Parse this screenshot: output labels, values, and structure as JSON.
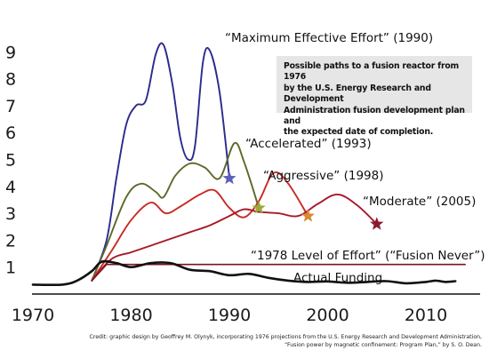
{
  "chart_data": {
    "type": "line",
    "xlim": [
      1970,
      2014
    ],
    "ylim": [
      0,
      9.6
    ],
    "x_ticks": [
      1970,
      1980,
      1990,
      2000,
      2010
    ],
    "y_ticks": [
      1,
      2,
      3,
      4,
      5,
      6,
      7,
      8,
      9
    ],
    "series": [
      {
        "name": "“Maximum Effective Effort” (1990)",
        "color": "#2b2a8e",
        "marker_color": "#5a5fb8",
        "points": [
          [
            1976,
            0.5
          ],
          [
            1977.5,
            2.0
          ],
          [
            1978.5,
            4.3
          ],
          [
            1979.5,
            6.3
          ],
          [
            1980.5,
            7.0
          ],
          [
            1981.5,
            7.2
          ],
          [
            1982.5,
            8.9
          ],
          [
            1983.3,
            9.25
          ],
          [
            1984.2,
            7.8
          ],
          [
            1985.0,
            5.8
          ],
          [
            1985.8,
            5.0
          ],
          [
            1986.5,
            5.5
          ],
          [
            1987.3,
            8.6
          ],
          [
            1988.0,
            9.05
          ],
          [
            1989.0,
            7.5
          ],
          [
            1990.0,
            4.3
          ]
        ],
        "end": [
          1990.0,
          4.3
        ]
      },
      {
        "name": "“Accelerated” (1993)",
        "color": "#5d6a28",
        "marker_color": "#9aaa3c",
        "points": [
          [
            1976,
            0.5
          ],
          [
            1977.5,
            1.8
          ],
          [
            1979.5,
            3.6
          ],
          [
            1981,
            4.1
          ],
          [
            1982.5,
            3.8
          ],
          [
            1983.3,
            3.6
          ],
          [
            1984.5,
            4.4
          ],
          [
            1986,
            4.85
          ],
          [
            1987.5,
            4.7
          ],
          [
            1989,
            4.3
          ],
          [
            1990.5,
            5.6
          ],
          [
            1991.5,
            4.9
          ],
          [
            1993,
            3.2
          ]
        ],
        "end": [
          1993.0,
          3.2
        ]
      },
      {
        "name": "“Aggressive” (1998)",
        "color": "#c92a26",
        "marker_color": "#d98a33",
        "points": [
          [
            1976,
            0.5
          ],
          [
            1978,
            1.6
          ],
          [
            1980,
            2.75
          ],
          [
            1982,
            3.4
          ],
          [
            1983.5,
            3.0
          ],
          [
            1985,
            3.25
          ],
          [
            1987,
            3.7
          ],
          [
            1988.5,
            3.85
          ],
          [
            1990,
            3.2
          ],
          [
            1991.5,
            2.85
          ],
          [
            1993,
            3.45
          ],
          [
            1994.5,
            4.5
          ],
          [
            1996,
            4.1
          ],
          [
            1998,
            2.9
          ]
        ],
        "end": [
          1998.0,
          2.9
        ]
      },
      {
        "name": "“Moderate” (2005)",
        "color": "#a8192a",
        "marker_color": "#8c1a2e",
        "points": [
          [
            1976,
            0.5
          ],
          [
            1978,
            1.3
          ],
          [
            1980,
            1.55
          ],
          [
            1982,
            1.8
          ],
          [
            1984,
            2.05
          ],
          [
            1986,
            2.3
          ],
          [
            1988,
            2.55
          ],
          [
            1990,
            2.9
          ],
          [
            1991.5,
            3.15
          ],
          [
            1993,
            3.05
          ],
          [
            1995,
            3.0
          ],
          [
            1997,
            2.9
          ],
          [
            1999,
            3.35
          ],
          [
            2001,
            3.7
          ],
          [
            2003,
            3.3
          ],
          [
            2005,
            2.6
          ]
        ],
        "end": [
          2005.0,
          2.6
        ]
      },
      {
        "name": "“1978 Level of Effort” (“Fusion Never”)",
        "color": "#7a1424",
        "points": [
          [
            1976,
            0.5
          ],
          [
            1977.5,
            1.1
          ],
          [
            2014,
            1.1
          ]
        ]
      },
      {
        "name": "Actual Funding",
        "color": "#111111",
        "points": [
          [
            1970,
            0.35
          ],
          [
            1973,
            0.35
          ],
          [
            1974.5,
            0.5
          ],
          [
            1976,
            0.85
          ],
          [
            1977,
            1.2
          ],
          [
            1978.5,
            1.15
          ],
          [
            1980,
            1.0
          ],
          [
            1982,
            1.15
          ],
          [
            1984,
            1.15
          ],
          [
            1986,
            0.9
          ],
          [
            1988,
            0.85
          ],
          [
            1990,
            0.7
          ],
          [
            1992,
            0.75
          ],
          [
            1994,
            0.6
          ],
          [
            1996,
            0.5
          ],
          [
            1998,
            0.45
          ],
          [
            2000,
            0.47
          ],
          [
            2002,
            0.42
          ],
          [
            2004,
            0.45
          ],
          [
            2006,
            0.48
          ],
          [
            2008,
            0.4
          ],
          [
            2010,
            0.45
          ],
          [
            2011,
            0.5
          ],
          [
            2012,
            0.45
          ],
          [
            2013,
            0.48
          ]
        ]
      }
    ],
    "annotation": "Possible paths to a fusion reactor from 1976 by the U.S. Energy Research and Development Administration fusion development plan and the expected date of completion.",
    "note_lines": [
      "Possible paths to a fusion reactor from 1976",
      "by the U.S. Energy Research and Development",
      "Administration fusion development plan and",
      "the expected date of completion."
    ],
    "labels": {
      "max": "“Maximum Effective Effort” (1990)",
      "accelerated": "“Accelerated” (1993)",
      "aggressive": "“Aggressive” (1998)",
      "moderate": "“Moderate” (2005)",
      "never": "“1978 Level of Effort” (“Fusion Never”)",
      "actual": "Actual Funding"
    }
  },
  "credit": {
    "line1": "Credit: graphic design by Geoffrey M. Olynyk, incorporating 1976 projections from the U.S. Energy Research and Development Administration,",
    "line2": "“Fusion power by magnetic confinement: Program Plan,” by S. O. Dean."
  }
}
